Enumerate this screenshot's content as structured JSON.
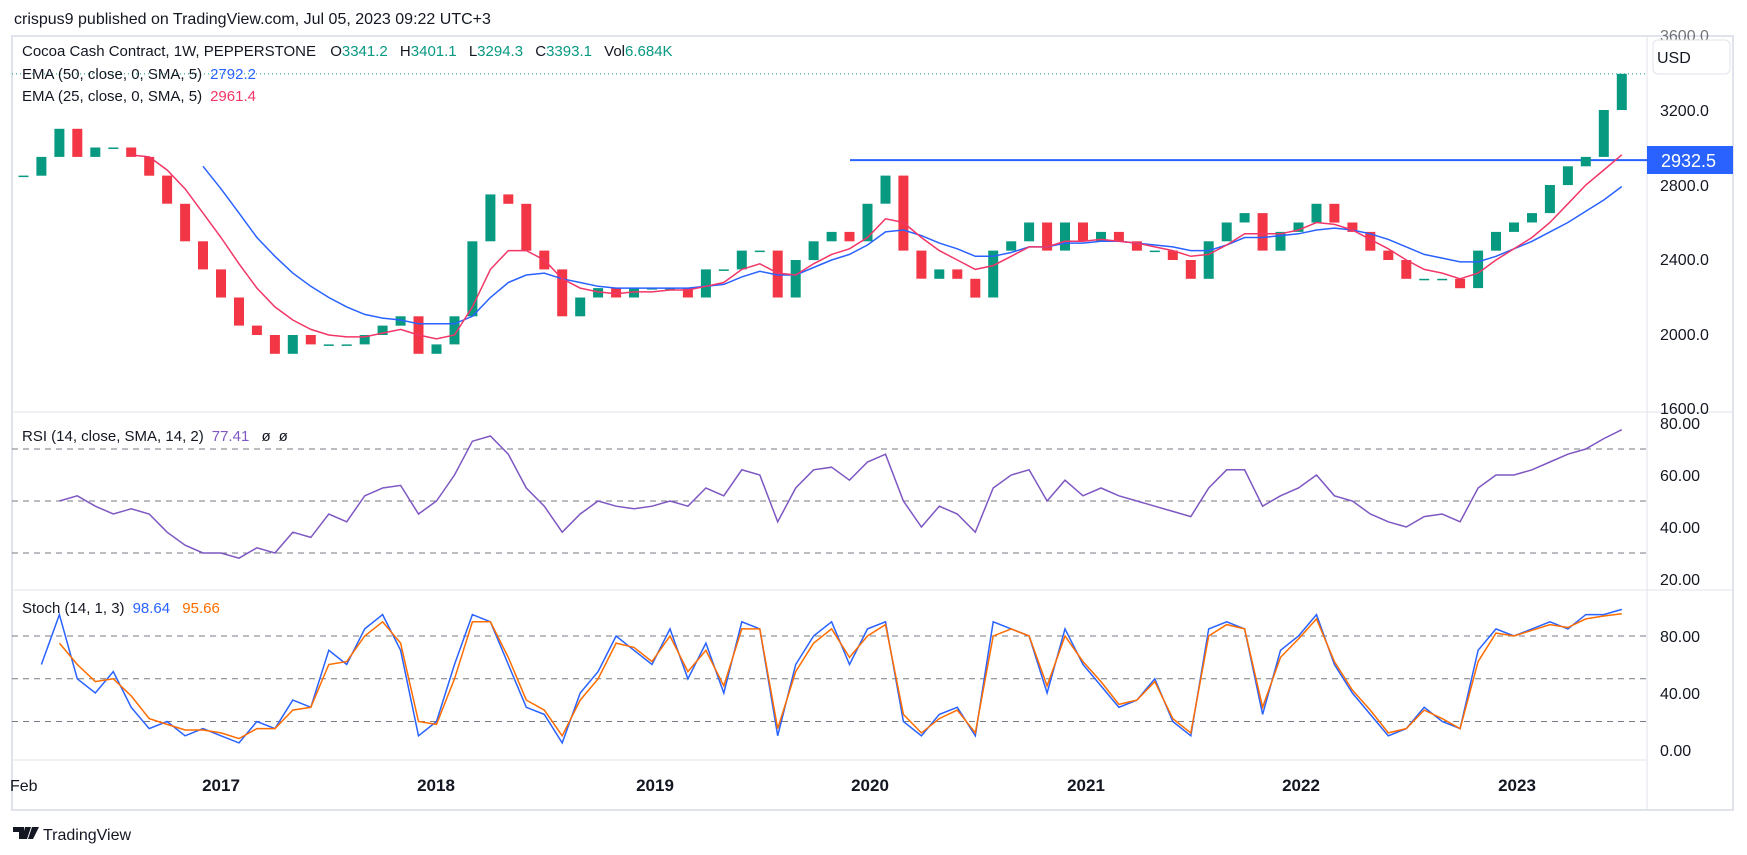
{
  "published": "crispus9 published on TradingView.com, Jul 05, 2023 09:22 UTC+3",
  "legend": {
    "symbol": "Cocoa Cash Contract, 1W, PEPPERSTONE",
    "o_label": "O",
    "o": "3341.2",
    "h_label": "H",
    "h": "3401.1",
    "l_label": "L",
    "l": "3294.3",
    "c_label": "C",
    "c": "3393.1",
    "vol_label": "Vol",
    "vol": "6.684K",
    "ema50_label": "EMA (50, close, 0, SMA, 5)",
    "ema50_value": "2792.2",
    "ema25_label": "EMA (25, close, 0, SMA, 5)",
    "ema25_value": "2961.4",
    "rsi_label": "RSI (14, close, SMA, 14, 2)",
    "rsi_value": "77.41",
    "rsi_extra1": "ø",
    "rsi_extra2": "ø",
    "stoch_label": "Stoch (14, 1, 3)",
    "stoch_k_value": "98.64",
    "stoch_d_value": "95.66"
  },
  "currency": "USD",
  "price_axis_labels": [
    "3600.0",
    "3200.0",
    "2800.0",
    "2400.0",
    "2000.0",
    "1600.0"
  ],
  "rsi_axis_labels": [
    "80.00",
    "60.00",
    "40.00",
    "20.00"
  ],
  "stoch_axis_labels": [
    "80.00",
    "40.00",
    "0.00"
  ],
  "time_axis_labels": [
    "Feb",
    "2017",
    "2018",
    "2019",
    "2020",
    "2021",
    "2022",
    "2023"
  ],
  "horizontal_line": {
    "value": 2932.5,
    "label": "2932.5"
  },
  "brand": "TradingView",
  "colors": {
    "up": "#089981",
    "down": "#f23645",
    "ema50": "#2962ff",
    "ema25": "#f23667",
    "rsi": "#7e57c2",
    "stoch_k": "#2962ff",
    "stoch_d": "#ff6d00",
    "hline": "#2962ff"
  },
  "chart_data": [
    {
      "type": "candlestick",
      "title": "Cocoa Cash Contract, 1W, PEPPERSTONE",
      "x_start": "2016-02",
      "x_step": "month",
      "ylim": [
        1580,
        3620
      ],
      "close": [
        2850,
        2950,
        3100,
        2950,
        3000,
        3000,
        2950,
        2850,
        2700,
        2500,
        2350,
        2200,
        2050,
        2000,
        1900,
        2000,
        1950,
        1950,
        1950,
        2000,
        2050,
        2100,
        1900,
        1950,
        2100,
        2500,
        2750,
        2700,
        2450,
        2350,
        2100,
        2200,
        2250,
        2200,
        2250,
        2250,
        2250,
        2200,
        2350,
        2350,
        2450,
        2450,
        2200,
        2400,
        2500,
        2550,
        2500,
        2700,
        2850,
        2450,
        2300,
        2350,
        2300,
        2200,
        2450,
        2500,
        2600,
        2450,
        2600,
        2500,
        2550,
        2500,
        2450,
        2450,
        2400,
        2300,
        2500,
        2600,
        2650,
        2450,
        2550,
        2600,
        2700,
        2600,
        2550,
        2450,
        2400,
        2300,
        2300,
        2300,
        2250,
        2450,
        2550,
        2600,
        2650,
        2800,
        2900,
        2950,
        3200,
        3393
      ],
      "series": [
        {
          "name": "EMA (50, close, 0, SMA, 5)",
          "values": [
            null,
            null,
            null,
            null,
            null,
            null,
            null,
            null,
            null,
            null,
            2900,
            2780,
            2650,
            2520,
            2420,
            2330,
            2260,
            2200,
            2150,
            2110,
            2090,
            2080,
            2060,
            2060,
            2060,
            2100,
            2200,
            2280,
            2320,
            2330,
            2300,
            2280,
            2260,
            2250,
            2250,
            2250,
            2250,
            2250,
            2260,
            2270,
            2310,
            2340,
            2320,
            2320,
            2360,
            2400,
            2430,
            2480,
            2550,
            2560,
            2530,
            2490,
            2460,
            2420,
            2420,
            2440,
            2470,
            2470,
            2490,
            2490,
            2500,
            2500,
            2490,
            2480,
            2470,
            2450,
            2450,
            2480,
            2520,
            2520,
            2530,
            2540,
            2560,
            2570,
            2560,
            2540,
            2510,
            2470,
            2430,
            2410,
            2390,
            2390,
            2420,
            2460,
            2500,
            2550,
            2600,
            2660,
            2720,
            2792
          ]
        },
        {
          "name": "EMA (25, close, 0, SMA, 5)",
          "values": [
            null,
            null,
            null,
            null,
            null,
            null,
            2960,
            2950,
            2880,
            2780,
            2650,
            2520,
            2380,
            2250,
            2150,
            2080,
            2030,
            2000,
            1990,
            1990,
            2010,
            2030,
            2000,
            1980,
            2000,
            2150,
            2350,
            2450,
            2450,
            2400,
            2300,
            2250,
            2230,
            2220,
            2230,
            2230,
            2240,
            2240,
            2260,
            2280,
            2350,
            2380,
            2330,
            2320,
            2380,
            2430,
            2460,
            2520,
            2620,
            2600,
            2520,
            2450,
            2400,
            2350,
            2370,
            2420,
            2470,
            2470,
            2500,
            2500,
            2510,
            2500,
            2490,
            2470,
            2450,
            2420,
            2430,
            2480,
            2540,
            2540,
            2540,
            2560,
            2600,
            2590,
            2560,
            2510,
            2460,
            2400,
            2350,
            2330,
            2300,
            2330,
            2400,
            2460,
            2520,
            2600,
            2700,
            2800,
            2880,
            2961
          ]
        }
      ],
      "hline": 2932.5
    },
    {
      "type": "line",
      "title": "RSI (14, close, SMA, 14, 2)",
      "ylim": [
        15,
        85
      ],
      "bands": [
        70,
        50,
        30
      ],
      "values": [
        null,
        null,
        50,
        52,
        48,
        45,
        47,
        45,
        38,
        33,
        30,
        30,
        28,
        32,
        30,
        38,
        36,
        45,
        42,
        52,
        55,
        56,
        45,
        50,
        60,
        73,
        75,
        68,
        55,
        48,
        38,
        45,
        50,
        48,
        47,
        48,
        50,
        48,
        55,
        52,
        62,
        60,
        42,
        55,
        62,
        63,
        58,
        65,
        68,
        50,
        40,
        48,
        45,
        38,
        55,
        60,
        62,
        50,
        58,
        52,
        55,
        52,
        50,
        48,
        46,
        44,
        55,
        62,
        62,
        48,
        52,
        55,
        60,
        52,
        50,
        45,
        42,
        40,
        44,
        45,
        42,
        55,
        60,
        60,
        62,
        65,
        68,
        70,
        74,
        77.41
      ]
    },
    {
      "type": "line",
      "title": "Stoch (14, 1, 3)",
      "ylim": [
        -5,
        105
      ],
      "bands": [
        80,
        50,
        20
      ],
      "series": [
        {
          "name": "K",
          "values": [
            null,
            60,
            95,
            50,
            40,
            55,
            30,
            15,
            20,
            10,
            15,
            10,
            5,
            20,
            15,
            35,
            30,
            70,
            60,
            85,
            95,
            70,
            10,
            20,
            60,
            95,
            90,
            60,
            30,
            25,
            5,
            40,
            55,
            80,
            70,
            60,
            85,
            50,
            75,
            40,
            90,
            85,
            10,
            60,
            80,
            90,
            60,
            85,
            90,
            20,
            10,
            25,
            30,
            10,
            90,
            85,
            80,
            40,
            85,
            60,
            45,
            30,
            35,
            50,
            20,
            10,
            85,
            90,
            85,
            25,
            70,
            80,
            95,
            60,
            40,
            25,
            10,
            15,
            30,
            20,
            15,
            70,
            85,
            80,
            85,
            90,
            85,
            95,
            95,
            98.64
          ]
        },
        {
          "name": "D",
          "values": [
            null,
            null,
            75,
            60,
            48,
            50,
            38,
            22,
            18,
            14,
            14,
            12,
            8,
            15,
            15,
            28,
            30,
            60,
            62,
            80,
            90,
            75,
            20,
            18,
            50,
            90,
            90,
            65,
            35,
            28,
            10,
            35,
            50,
            75,
            72,
            62,
            80,
            55,
            70,
            45,
            85,
            85,
            15,
            55,
            75,
            85,
            65,
            80,
            88,
            25,
            12,
            22,
            28,
            12,
            80,
            85,
            80,
            45,
            80,
            62,
            48,
            32,
            35,
            48,
            22,
            12,
            80,
            88,
            85,
            30,
            65,
            78,
            92,
            62,
            42,
            28,
            12,
            15,
            28,
            22,
            15,
            62,
            82,
            80,
            84,
            88,
            86,
            92,
            94,
            95.66
          ]
        }
      ]
    }
  ]
}
